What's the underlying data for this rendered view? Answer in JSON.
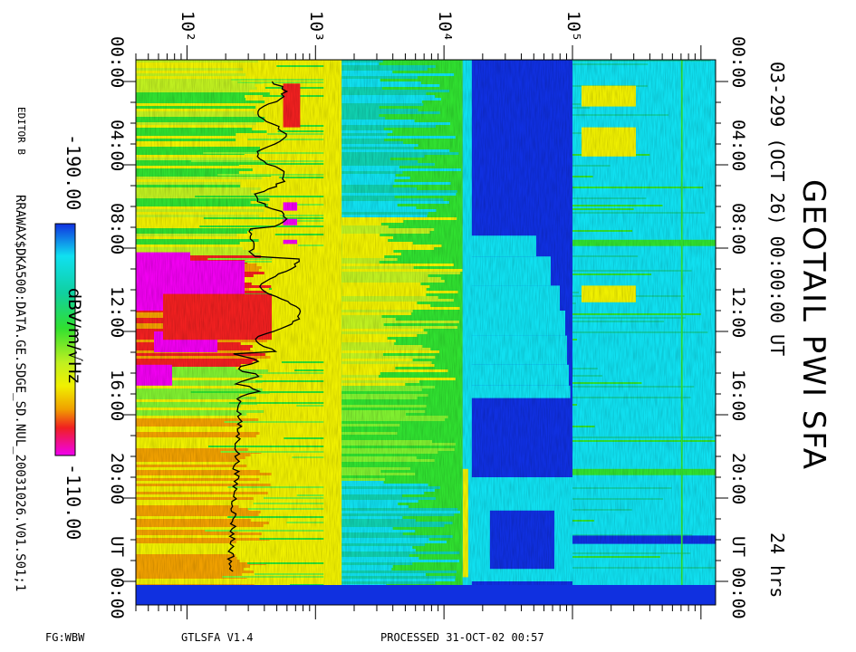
{
  "title": "GEOTAIL PWI SFA",
  "subtitle": "03-299 (OCT 26) 00:00:00 UT",
  "duration": "24 hrs",
  "editor": "EDITOR B",
  "data_path": "RRAWAX$DKA500:DATA.GE.SDGE_SD.NUL_20031026.V01.S01;1",
  "footer": {
    "left": "FG:WBW",
    "program": "GTLSFA   V1.4",
    "processed": "PROCESSED 31-OCT-02   00:57"
  },
  "colorbar": {
    "label": "dBV/m/√Hz",
    "min_label": "-190.00",
    "max_label": "-110.00",
    "colors": [
      "#1030e0",
      "#10e0f0",
      "#10e060",
      "#a0f030",
      "#f0f000",
      "#f0a000",
      "#f02000",
      "#f000f0"
    ]
  },
  "chart_data": {
    "type": "heatmap",
    "title": "GEOTAIL PWI SFA",
    "x_axis": {
      "scale": "log",
      "unit": "Hz",
      "range": [
        40,
        1300000
      ],
      "tick_labels": [
        "10²",
        "10³",
        "10⁴",
        "10⁵"
      ]
    },
    "y_axis": {
      "unit": "UT",
      "range": [
        "00:00",
        "24:00"
      ],
      "tick_labels_left": [
        "00:00",
        "04:00",
        "08:00",
        "12:00",
        "16:00",
        "20:00",
        "UT 00:00"
      ],
      "tick_labels_right": [
        "00:00",
        "04:00",
        "08:00",
        "12:00",
        "16:00",
        "20:00",
        "UT 00:00"
      ]
    },
    "color_scale": {
      "unit": "dBV/m/√Hz",
      "min": -190.0,
      "max": -110.0
    },
    "bands": [
      {
        "f_low": 40,
        "f_high": 1600,
        "typical_level": "yellow-green to magenta"
      },
      {
        "f_low": 1600,
        "f_high": 14000,
        "typical_level": "cyan-green to yellow"
      },
      {
        "f_low": 14000,
        "f_high": 100000,
        "typical_level": "blue (below -180) with cyan"
      },
      {
        "f_low": 100000,
        "f_high": 1300000,
        "typical_level": "cyan with green/yellow patches"
      }
    ]
  }
}
